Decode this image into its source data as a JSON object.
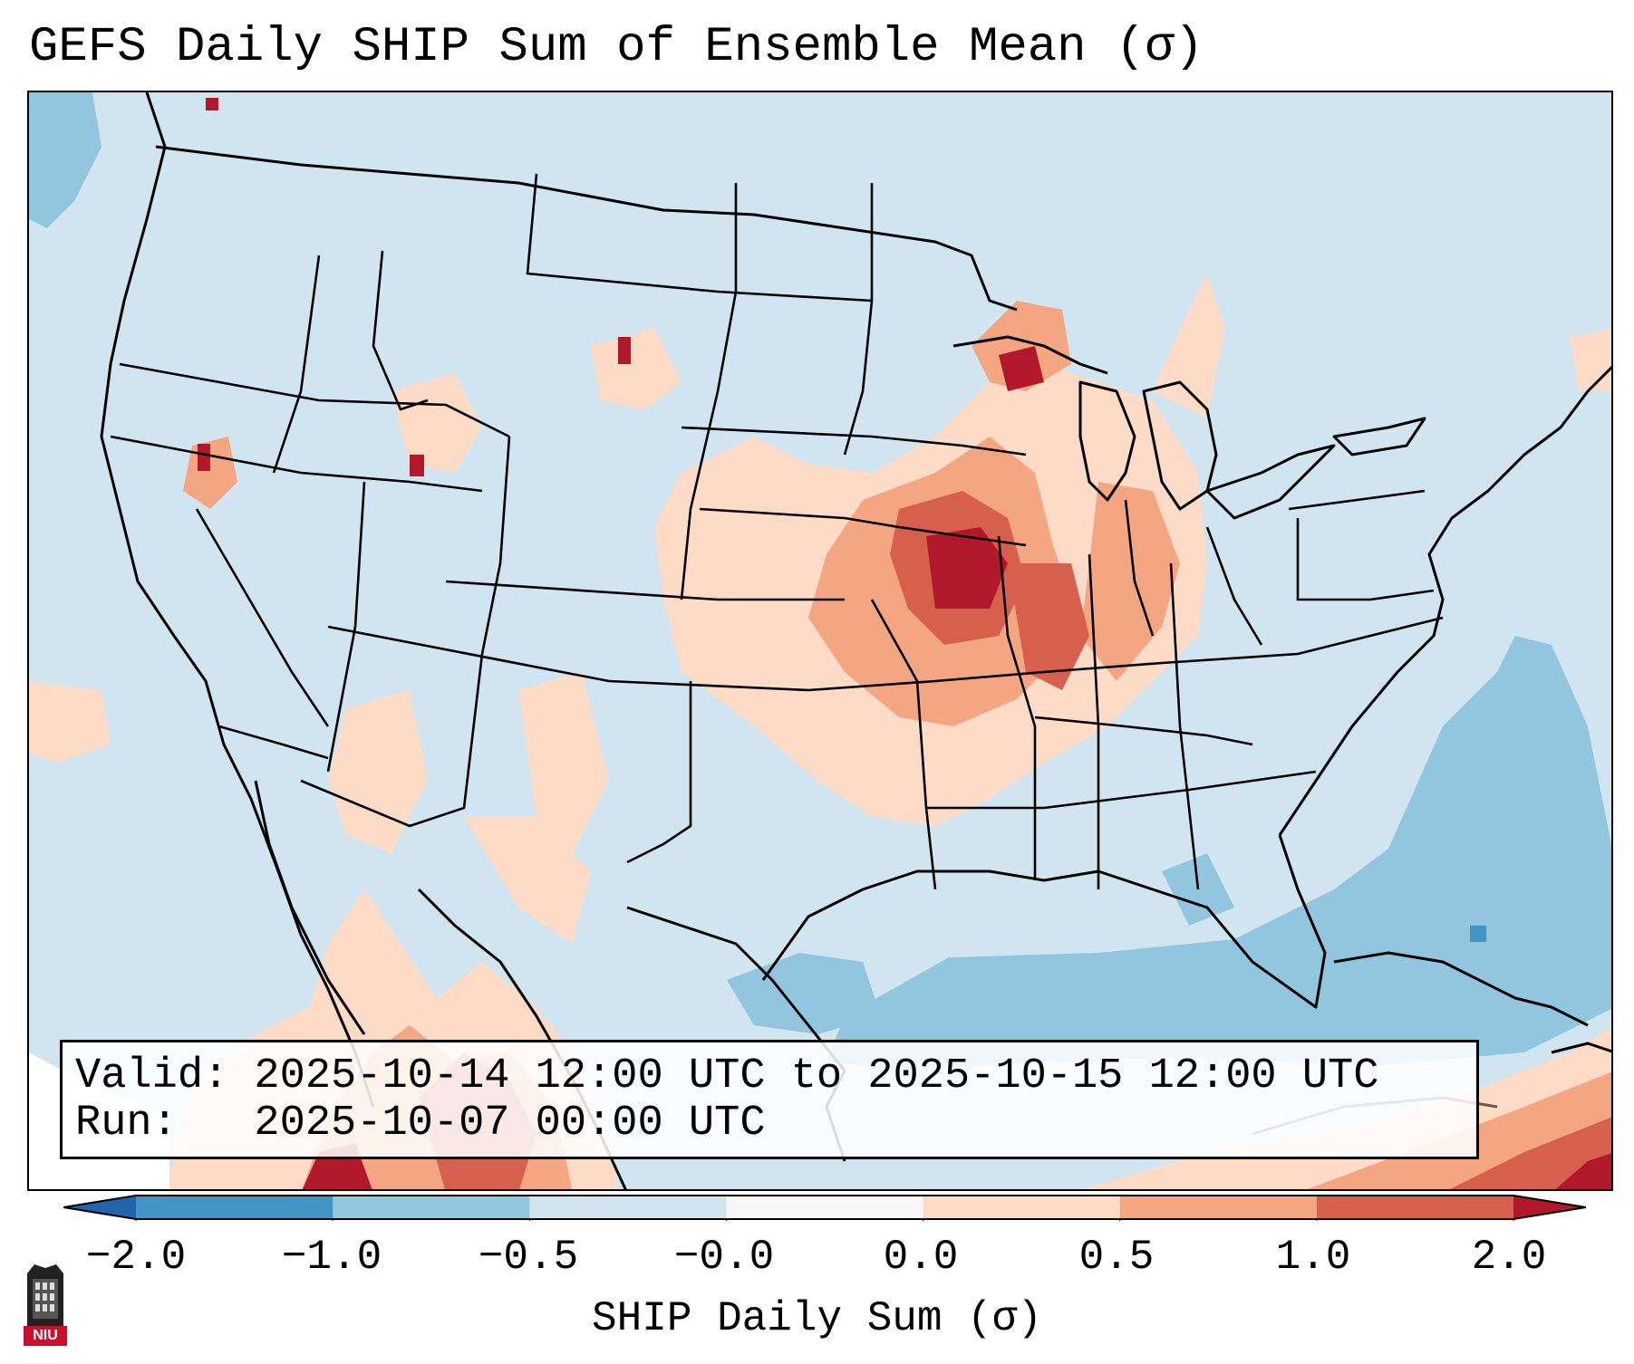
{
  "title": "GEFS Daily SHIP Sum of Ensemble Mean (σ)",
  "info": {
    "valid_line": "Valid: 2025-10-14 12:00 UTC to 2025-10-15 12:00 UTC",
    "run_line": "Run:   2025-10-07 00:00 UTC"
  },
  "colorbar": {
    "label": "SHIP Daily Sum (σ)",
    "ticks": [
      "−2.0",
      "−1.0",
      "−0.5",
      "−0.0",
      "0.0",
      "0.5",
      "1.0",
      "2.0"
    ],
    "bins": [
      {
        "range": "below -2.0",
        "color": "#2166ac"
      },
      {
        "range": "-2.0 to -1.0",
        "color": "#4393c3"
      },
      {
        "range": "-1.0 to -0.5",
        "color": "#92c5de"
      },
      {
        "range": "-0.5 to -0.0",
        "color": "#d1e5f0"
      },
      {
        "range": "-0.0 to 0.0",
        "color": "#f7f7f7"
      },
      {
        "range": "0.0 to 0.5",
        "color": "#fddbc7"
      },
      {
        "range": "0.5 to 1.0",
        "color": "#f4a582"
      },
      {
        "range": "1.0 to 2.0",
        "color": "#d6604d"
      },
      {
        "range": "above 2.0",
        "color": "#b2182b"
      }
    ]
  },
  "map": {
    "region": "Contiguous United States",
    "background_color": "#d1e5f0",
    "highlights": [
      {
        "area": "Upper Midwest / Iowa / Missouri / Illinois",
        "category": "1.0 to 2.0+",
        "color": "#b2182b"
      },
      {
        "area": "Great Lakes and Ohio Valley",
        "category": "0.5 to 1.0",
        "color": "#f4a582"
      },
      {
        "area": "Northern Mexico",
        "category": "0.5 to 2.0",
        "color": "#d6604d"
      },
      {
        "area": "Caribbean",
        "category": "1.0 to 2.0+",
        "color": "#b2182b"
      },
      {
        "area": "Gulf of Mexico and western Atlantic",
        "category": "-1.0 to -0.5",
        "color": "#92c5de"
      }
    ]
  },
  "logo": {
    "text": "NIU",
    "icon": "niu-tower-icon"
  }
}
